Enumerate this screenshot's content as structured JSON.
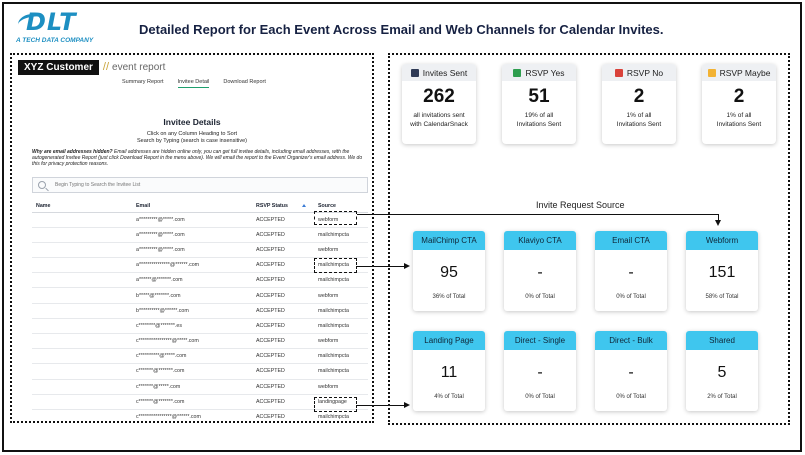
{
  "logo": {
    "mark": "DLT",
    "tagline": "A TECH DATA COMPANY"
  },
  "page_title": "Detailed Report for Each Event Across Email and Web Channels for Calendar Invites.",
  "left_panel": {
    "customer": "XYZ Customer",
    "slashes": "//",
    "event_report": "event report",
    "tabs": [
      "Summary Report",
      "Invitee Detail",
      "Download Report"
    ],
    "active_tab": "Invitee Detail",
    "invitee_title": "Invitee Details",
    "invitee_sub_1": "Click on any Column Heading to Sort",
    "invitee_sub_2": "Search by Typing (search is case insensitive)",
    "hidden_note_q": "Why are email addresses hidden?",
    "hidden_note_body": "Email addresses are hidden online only, you can get full invitee details, including email addresses, with the autogenerated Invitee Report (just click Download Report in the menu above). We will email the report to the Event Organizer's email address. We do this for privacy protection reasons.",
    "search_placeholder": "Begin Typing to Search the Invitee List",
    "columns": [
      "Name",
      "Email",
      "RSVP Status",
      "Source"
    ],
    "rows": [
      {
        "name": "",
        "email": "a*********@*****.com",
        "status": "ACCEPTED",
        "source": "webform"
      },
      {
        "name": "",
        "email": "a*********@*****.com",
        "status": "ACCEPTED",
        "source": "mailchimpcta"
      },
      {
        "name": "",
        "email": "a*********@*****.com",
        "status": "ACCEPTED",
        "source": "webform"
      },
      {
        "name": "",
        "email": "a***************@******.com",
        "status": "ACCEPTED",
        "source": "mailchimpcta"
      },
      {
        "name": "",
        "email": "a******@*******.com",
        "status": "ACCEPTED",
        "source": "mailchimpcta"
      },
      {
        "name": "",
        "email": "b*****@*******.com",
        "status": "ACCEPTED",
        "source": "webform"
      },
      {
        "name": "",
        "email": "b**********@******.com",
        "status": "ACCEPTED",
        "source": "mailchimpcta"
      },
      {
        "name": "",
        "email": "c********@*******.es",
        "status": "ACCEPTED",
        "source": "mailchimpcta"
      },
      {
        "name": "",
        "email": "c****************@*****.com",
        "status": "ACCEPTED",
        "source": "webform"
      },
      {
        "name": "",
        "email": "c**********@*****.com",
        "status": "ACCEPTED",
        "source": "mailchimpcta"
      },
      {
        "name": "",
        "email": "c*******@*******.com",
        "status": "ACCEPTED",
        "source": "mailchimpcta"
      },
      {
        "name": "",
        "email": "c*******@*****.com",
        "status": "ACCEPTED",
        "source": "webform"
      },
      {
        "name": "",
        "email": "c*******@*******.com",
        "status": "ACCEPTED",
        "source": "landingpage"
      },
      {
        "name": "",
        "email": "c****************@******.com",
        "status": "ACCEPTED",
        "source": "mailchimpcta"
      }
    ]
  },
  "stats": [
    {
      "label": "Invites Sent",
      "value": "262",
      "cap1": "all invitations sent",
      "cap2": "with CalendarSnack",
      "icon": "envelope-icon",
      "color": "#2f3a55"
    },
    {
      "label": "RSVP Yes",
      "value": "51",
      "cap1": "19% of all",
      "cap2": "Invitations Sent",
      "icon": "calendar-check-icon",
      "color": "#2e9e4f"
    },
    {
      "label": "RSVP No",
      "value": "2",
      "cap1": "1% of all",
      "cap2": "Invitations Sent",
      "icon": "calendar-x-icon",
      "color": "#d9423a"
    },
    {
      "label": "RSVP Maybe",
      "value": "2",
      "cap1": "1% of all",
      "cap2": "Invitations Sent",
      "icon": "calendar-question-icon",
      "color": "#f2b233"
    }
  ],
  "source_title": "Invite Request Source",
  "sources": [
    {
      "label": "MailChimp CTA",
      "value": "95",
      "cap": "36% of Total"
    },
    {
      "label": "Klaviyo CTA",
      "value": "-",
      "cap": "0% of Total"
    },
    {
      "label": "Email CTA",
      "value": "-",
      "cap": "0% of Total"
    },
    {
      "label": "Webform",
      "value": "151",
      "cap": "58% of Total"
    },
    {
      "label": "Landing Page",
      "value": "11",
      "cap": "4% of Total"
    },
    {
      "label": "Direct - Single",
      "value": "-",
      "cap": "0% of Total"
    },
    {
      "label": "Direct - Bulk",
      "value": "-",
      "cap": "0% of Total"
    },
    {
      "label": "Shared",
      "value": "5",
      "cap": "2% of Total"
    }
  ],
  "colors": {
    "accent": "#3fc6ee",
    "brand": "#1d8fc2",
    "title": "#162142"
  }
}
